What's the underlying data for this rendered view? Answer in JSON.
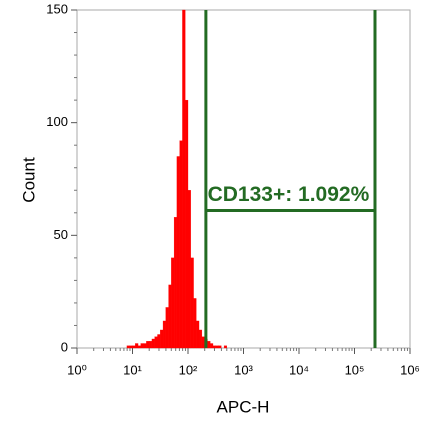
{
  "chart_data": {
    "type": "histogram",
    "x_label": "APC-H",
    "y_label": "Count",
    "log_x": true,
    "color": "#ff0000",
    "bins": [
      7.94,
      8.91,
      10,
      11.2,
      12.6,
      14.1,
      15.8,
      17.8,
      20,
      22.4,
      25.1,
      28.2,
      31.6,
      35.5,
      39.8,
      44.7,
      50.1,
      56.2,
      63.1,
      70.8,
      79.4,
      89.1,
      100,
      112,
      126,
      141,
      158,
      178,
      200,
      224,
      251,
      282,
      316,
      355,
      398,
      447,
      501
    ],
    "counts": [
      1,
      1,
      1,
      2,
      1,
      2,
      2,
      3,
      3,
      4,
      5,
      6,
      8,
      12,
      18,
      28,
      40,
      58,
      85,
      92,
      150,
      110,
      70,
      40,
      22,
      12,
      8,
      5,
      4,
      3,
      2,
      1,
      1,
      1,
      0,
      1
    ],
    "xlim": [
      1,
      1000000
    ],
    "xticks": [
      {
        "value": 1,
        "label": "10⁰"
      },
      {
        "value": 10,
        "label": "10¹"
      },
      {
        "value": 100,
        "label": "10²"
      },
      {
        "value": 1000,
        "label": "10³"
      },
      {
        "value": 10000,
        "label": "10⁴"
      },
      {
        "value": 100000,
        "label": "10⁵"
      },
      {
        "value": 1000000,
        "label": "10⁶"
      }
    ],
    "ylim": [
      0,
      150
    ],
    "yticks": [
      0,
      50,
      100,
      150
    ],
    "gate": {
      "label": "CD133+: 1.092%",
      "x": [
        210,
        234000
      ],
      "y": 61,
      "color": "#236b23"
    }
  }
}
